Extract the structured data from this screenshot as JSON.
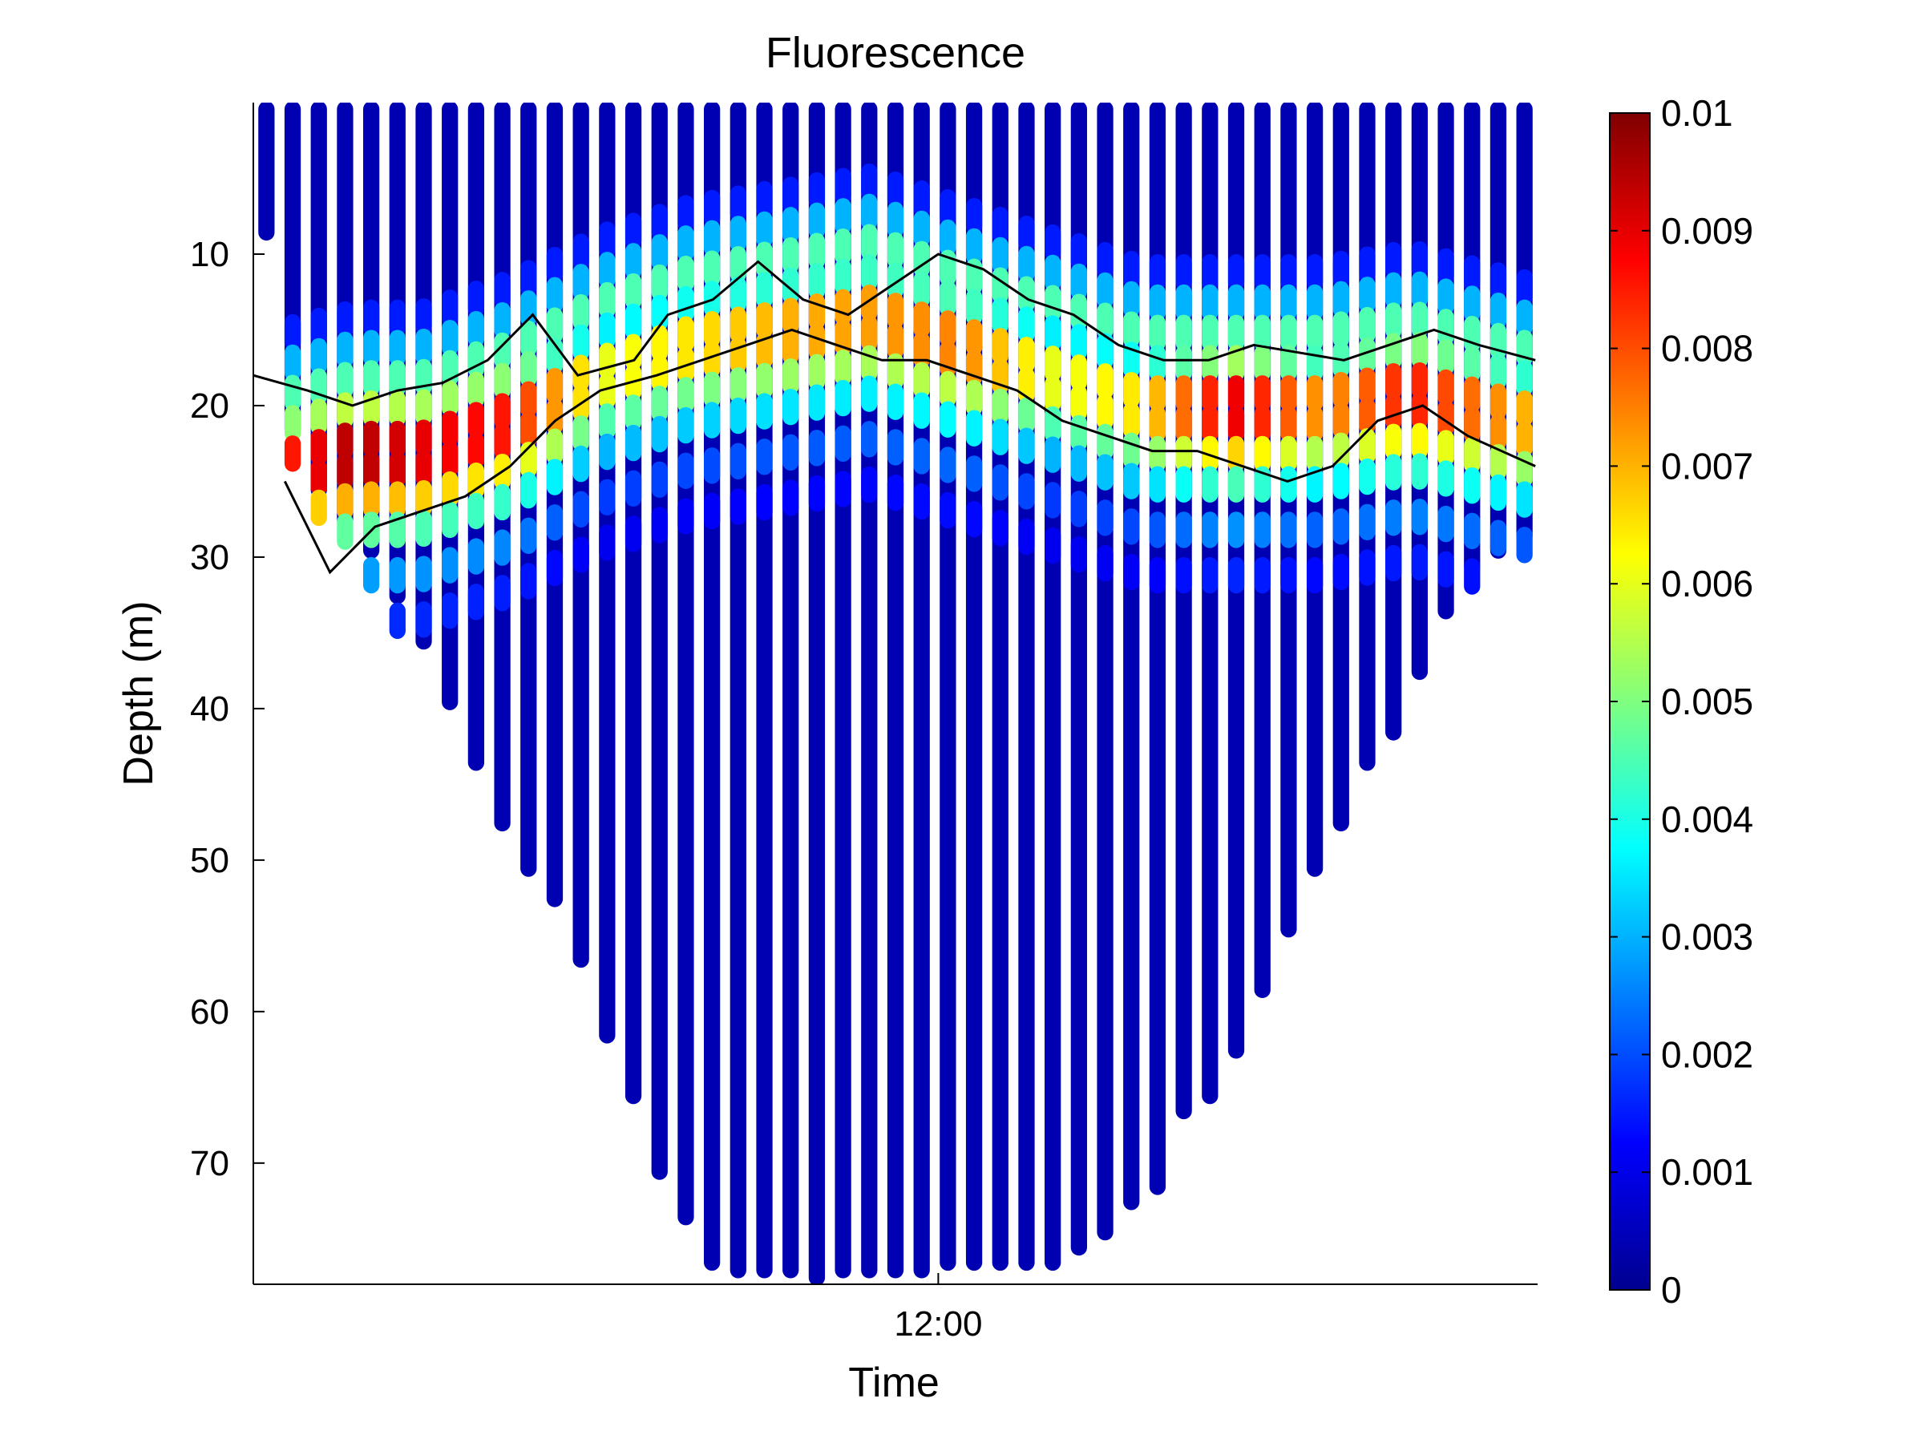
{
  "chart_data": {
    "type": "scatter",
    "title": "Fluorescence",
    "xlabel": "Time",
    "ylabel": "Depth (m)",
    "x_range_hours": [
      5.92,
      17.32
    ],
    "xticks": [
      {
        "value": 12.0,
        "label": "12:00"
      }
    ],
    "ylim": [
      0,
      78
    ],
    "y_reversed": true,
    "yticks": [
      10,
      20,
      30,
      40,
      50,
      60,
      70
    ],
    "grid": false,
    "colorbar": {
      "colormap": "jet",
      "min": 0,
      "max": 0.01,
      "ticks": [
        0,
        0.001,
        0.002,
        0.003,
        0.004,
        0.005,
        0.006,
        0.007,
        0.008,
        0.009,
        0.01
      ],
      "tick_labels": [
        "0",
        "0.001",
        "0.002",
        "0.003",
        "0.004",
        "0.005",
        "0.006",
        "0.007",
        "0.008",
        "0.009",
        "0.01"
      ]
    },
    "profiles_max_depth": [
      9,
      22,
      26,
      28,
      30,
      33,
      36,
      40,
      44,
      48,
      51,
      53,
      57,
      62,
      66,
      71,
      74,
      77,
      77.5,
      77.5,
      77.5,
      78,
      77.5,
      77.5,
      77.5,
      77.5,
      77,
      77,
      77,
      77,
      77,
      76,
      75,
      73,
      72,
      67,
      66,
      63,
      59,
      55,
      51,
      48,
      44,
      42,
      38,
      34,
      31,
      30,
      29
    ],
    "chlorophyll_layer": {
      "time_hours": [
        6.25,
        6.8,
        7.4,
        8.2,
        9.0,
        9.8,
        10.6,
        11.4,
        12.2,
        13.0,
        13.8,
        14.6,
        15.4,
        16.2,
        17.2
      ],
      "center_depth": [
        23,
        22,
        22,
        20,
        17,
        15,
        14,
        13,
        15,
        17,
        19,
        19,
        19,
        18,
        20
      ],
      "peak_value": [
        0.0085,
        0.0095,
        0.009,
        0.0085,
        0.006,
        0.0065,
        0.007,
        0.0072,
        0.0075,
        0.006,
        0.0065,
        0.009,
        0.0072,
        0.0085,
        0.007
      ]
    },
    "contour_upper": {
      "time_hours": [
        5.92,
        6.4,
        6.8,
        7.2,
        7.6,
        8.0,
        8.4,
        8.8,
        9.3,
        9.6,
        10.0,
        10.4,
        10.8,
        11.2,
        11.6,
        12.0,
        12.4,
        12.8,
        13.2,
        13.6,
        14.0,
        14.4,
        14.8,
        15.2,
        15.6,
        16.0,
        16.4,
        16.8,
        17.3
      ],
      "depth": [
        18,
        19,
        20,
        19,
        18.5,
        17,
        14,
        18,
        17,
        14,
        13,
        10.5,
        13,
        14,
        12,
        10,
        11,
        13,
        14,
        16,
        17,
        17,
        16,
        16.5,
        17,
        16,
        15,
        16,
        17
      ]
    },
    "contour_lower": {
      "time_hours": [
        6.2,
        6.6,
        7.0,
        7.4,
        7.8,
        8.2,
        8.6,
        9.0,
        9.5,
        9.9,
        10.3,
        10.7,
        11.1,
        11.5,
        11.9,
        12.3,
        12.7,
        13.1,
        13.5,
        13.9,
        14.3,
        14.7,
        15.1,
        15.5,
        15.9,
        16.3,
        16.7,
        17.3
      ],
      "depth": [
        25,
        31,
        28,
        27,
        26,
        24,
        21,
        19,
        18,
        17,
        16,
        15,
        16,
        17,
        17,
        18,
        19,
        21,
        22,
        23,
        23,
        24,
        25,
        24,
        21,
        20,
        22,
        24
      ]
    }
  }
}
